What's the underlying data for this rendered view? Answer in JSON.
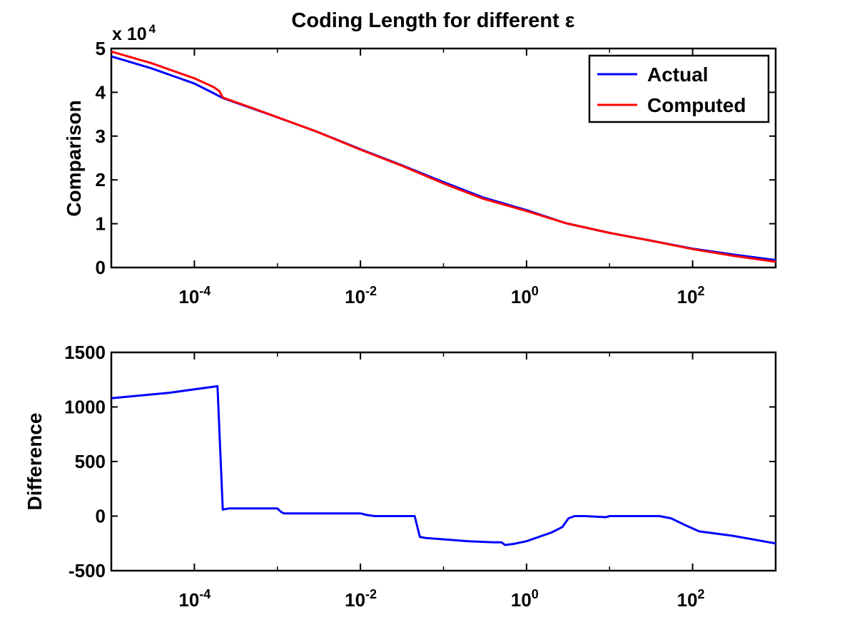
{
  "chart_data": [
    {
      "type": "line",
      "title": "Coding Length for different ε",
      "ylabel": "Comparison",
      "xlabel": "",
      "xscale": "log",
      "xlim": [
        1e-05,
        1000
      ],
      "ylim": [
        0,
        50000
      ],
      "y_multiplier_label": "x 10",
      "y_multiplier_exp": "4",
      "yticks": [
        0,
        1,
        2,
        3,
        4,
        5
      ],
      "xticks": [
        {
          "base": "10",
          "exp": "-4",
          "value": 0.0001
        },
        {
          "base": "10",
          "exp": "-2",
          "value": 0.01
        },
        {
          "base": "10",
          "exp": "0",
          "value": 1
        },
        {
          "base": "10",
          "exp": "2",
          "value": 100
        }
      ],
      "grid": false,
      "legend_position": "top-right",
      "series": [
        {
          "name": "Actual",
          "color": "#0000ff",
          "x": [
            1e-05,
            3e-05,
            0.0001,
            0.00017,
            0.00022,
            0.0005,
            0.001,
            0.003,
            0.01,
            0.03,
            0.1,
            0.3,
            1,
            3,
            10,
            30,
            100,
            300,
            1000
          ],
          "y": [
            48200,
            45500,
            42000,
            39800,
            38700,
            36300,
            34300,
            31000,
            27000,
            23500,
            19500,
            16000,
            13100,
            10100,
            7900,
            6200,
            4300,
            3000,
            1700
          ]
        },
        {
          "name": "Computed",
          "color": "#ff0000",
          "x": [
            1e-05,
            3e-05,
            0.0001,
            0.00017,
            0.0002,
            0.00022,
            0.0005,
            0.001,
            0.003,
            0.01,
            0.03,
            0.1,
            0.3,
            1,
            3,
            10,
            30,
            100,
            300,
            1000
          ],
          "y": [
            49300,
            46700,
            43200,
            41200,
            40300,
            38800,
            36400,
            34300,
            31000,
            26900,
            23400,
            19200,
            15700,
            12900,
            10100,
            7900,
            6200,
            4200,
            2700,
            1300
          ]
        }
      ]
    },
    {
      "type": "line",
      "title": "",
      "ylabel": "Difference",
      "xlabel": "",
      "xscale": "log",
      "xlim": [
        1e-05,
        1000
      ],
      "ylim": [
        -500,
        1500
      ],
      "yticks": [
        -500,
        0,
        500,
        1000,
        1500
      ],
      "xticks": [
        {
          "base": "10",
          "exp": "-4",
          "value": 0.0001
        },
        {
          "base": "10",
          "exp": "-2",
          "value": 0.01
        },
        {
          "base": "10",
          "exp": "0",
          "value": 1
        },
        {
          "base": "10",
          "exp": "2",
          "value": 100
        }
      ],
      "grid": false,
      "series": [
        {
          "color": "#0000ff",
          "x": [
            1e-05,
            5e-05,
            0.00015,
            0.00019,
            0.00022,
            0.00026,
            0.001,
            0.0011,
            0.0012,
            0.01,
            0.012,
            0.015,
            0.045,
            0.052,
            0.06,
            0.2,
            0.4,
            0.5,
            0.55,
            0.7,
            1,
            2,
            2.7,
            3.2,
            3.8,
            5,
            9,
            10,
            40,
            55,
            80,
            120,
            300,
            1000
          ],
          "y": [
            1080,
            1130,
            1180,
            1190,
            60,
            70,
            70,
            40,
            25,
            25,
            10,
            0,
            0,
            -190,
            -200,
            -230,
            -240,
            -240,
            -265,
            -255,
            -230,
            -150,
            -100,
            -20,
            0,
            0,
            -10,
            0,
            0,
            -20,
            -80,
            -140,
            -180,
            -250
          ]
        }
      ]
    }
  ]
}
